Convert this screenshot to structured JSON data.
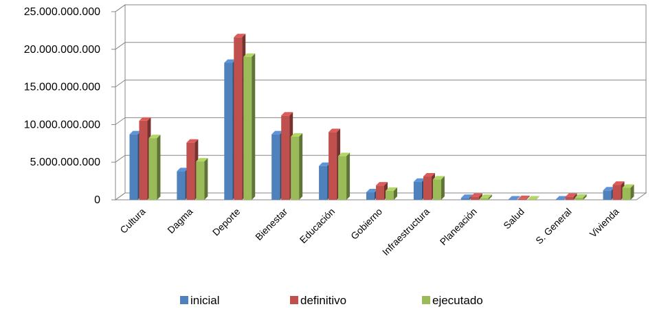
{
  "chart_data": {
    "type": "bar",
    "style": "3d-clustered-column",
    "title": "",
    "xlabel": "",
    "ylabel": "",
    "categories": [
      "Cultura",
      "Dagma",
      "Deporte",
      "Bienestar",
      "Educación",
      "Gobierno",
      "Infraestructura",
      "Planeación",
      "Salud",
      "S. General",
      "Vivienda"
    ],
    "y_ticks": [
      "0",
      "5.000.000.000",
      "10.000.000.000",
      "15.000.000.000",
      "20.000.000.000",
      "25.000.000.000"
    ],
    "ylim": [
      0,
      25000000000
    ],
    "grid": true,
    "legend_position": "bottom",
    "series": [
      {
        "name": "inicial",
        "color": "#4F81BD",
        "values": [
          8700000000,
          3800000000,
          18200000000,
          8700000000,
          4500000000,
          1000000000,
          2400000000,
          250000000,
          50000000,
          50000000,
          1250000000
        ]
      },
      {
        "name": "definitivo",
        "color": "#C0504D",
        "values": [
          10500000000,
          7600000000,
          21600000000,
          11200000000,
          9000000000,
          1900000000,
          3100000000,
          400000000,
          100000000,
          400000000,
          2000000000
        ]
      },
      {
        "name": "ejecutado",
        "color": "#9BBB59",
        "values": [
          8200000000,
          5100000000,
          19000000000,
          8400000000,
          5800000000,
          1200000000,
          2700000000,
          250000000,
          50000000,
          300000000,
          1600000000
        ]
      }
    ]
  }
}
